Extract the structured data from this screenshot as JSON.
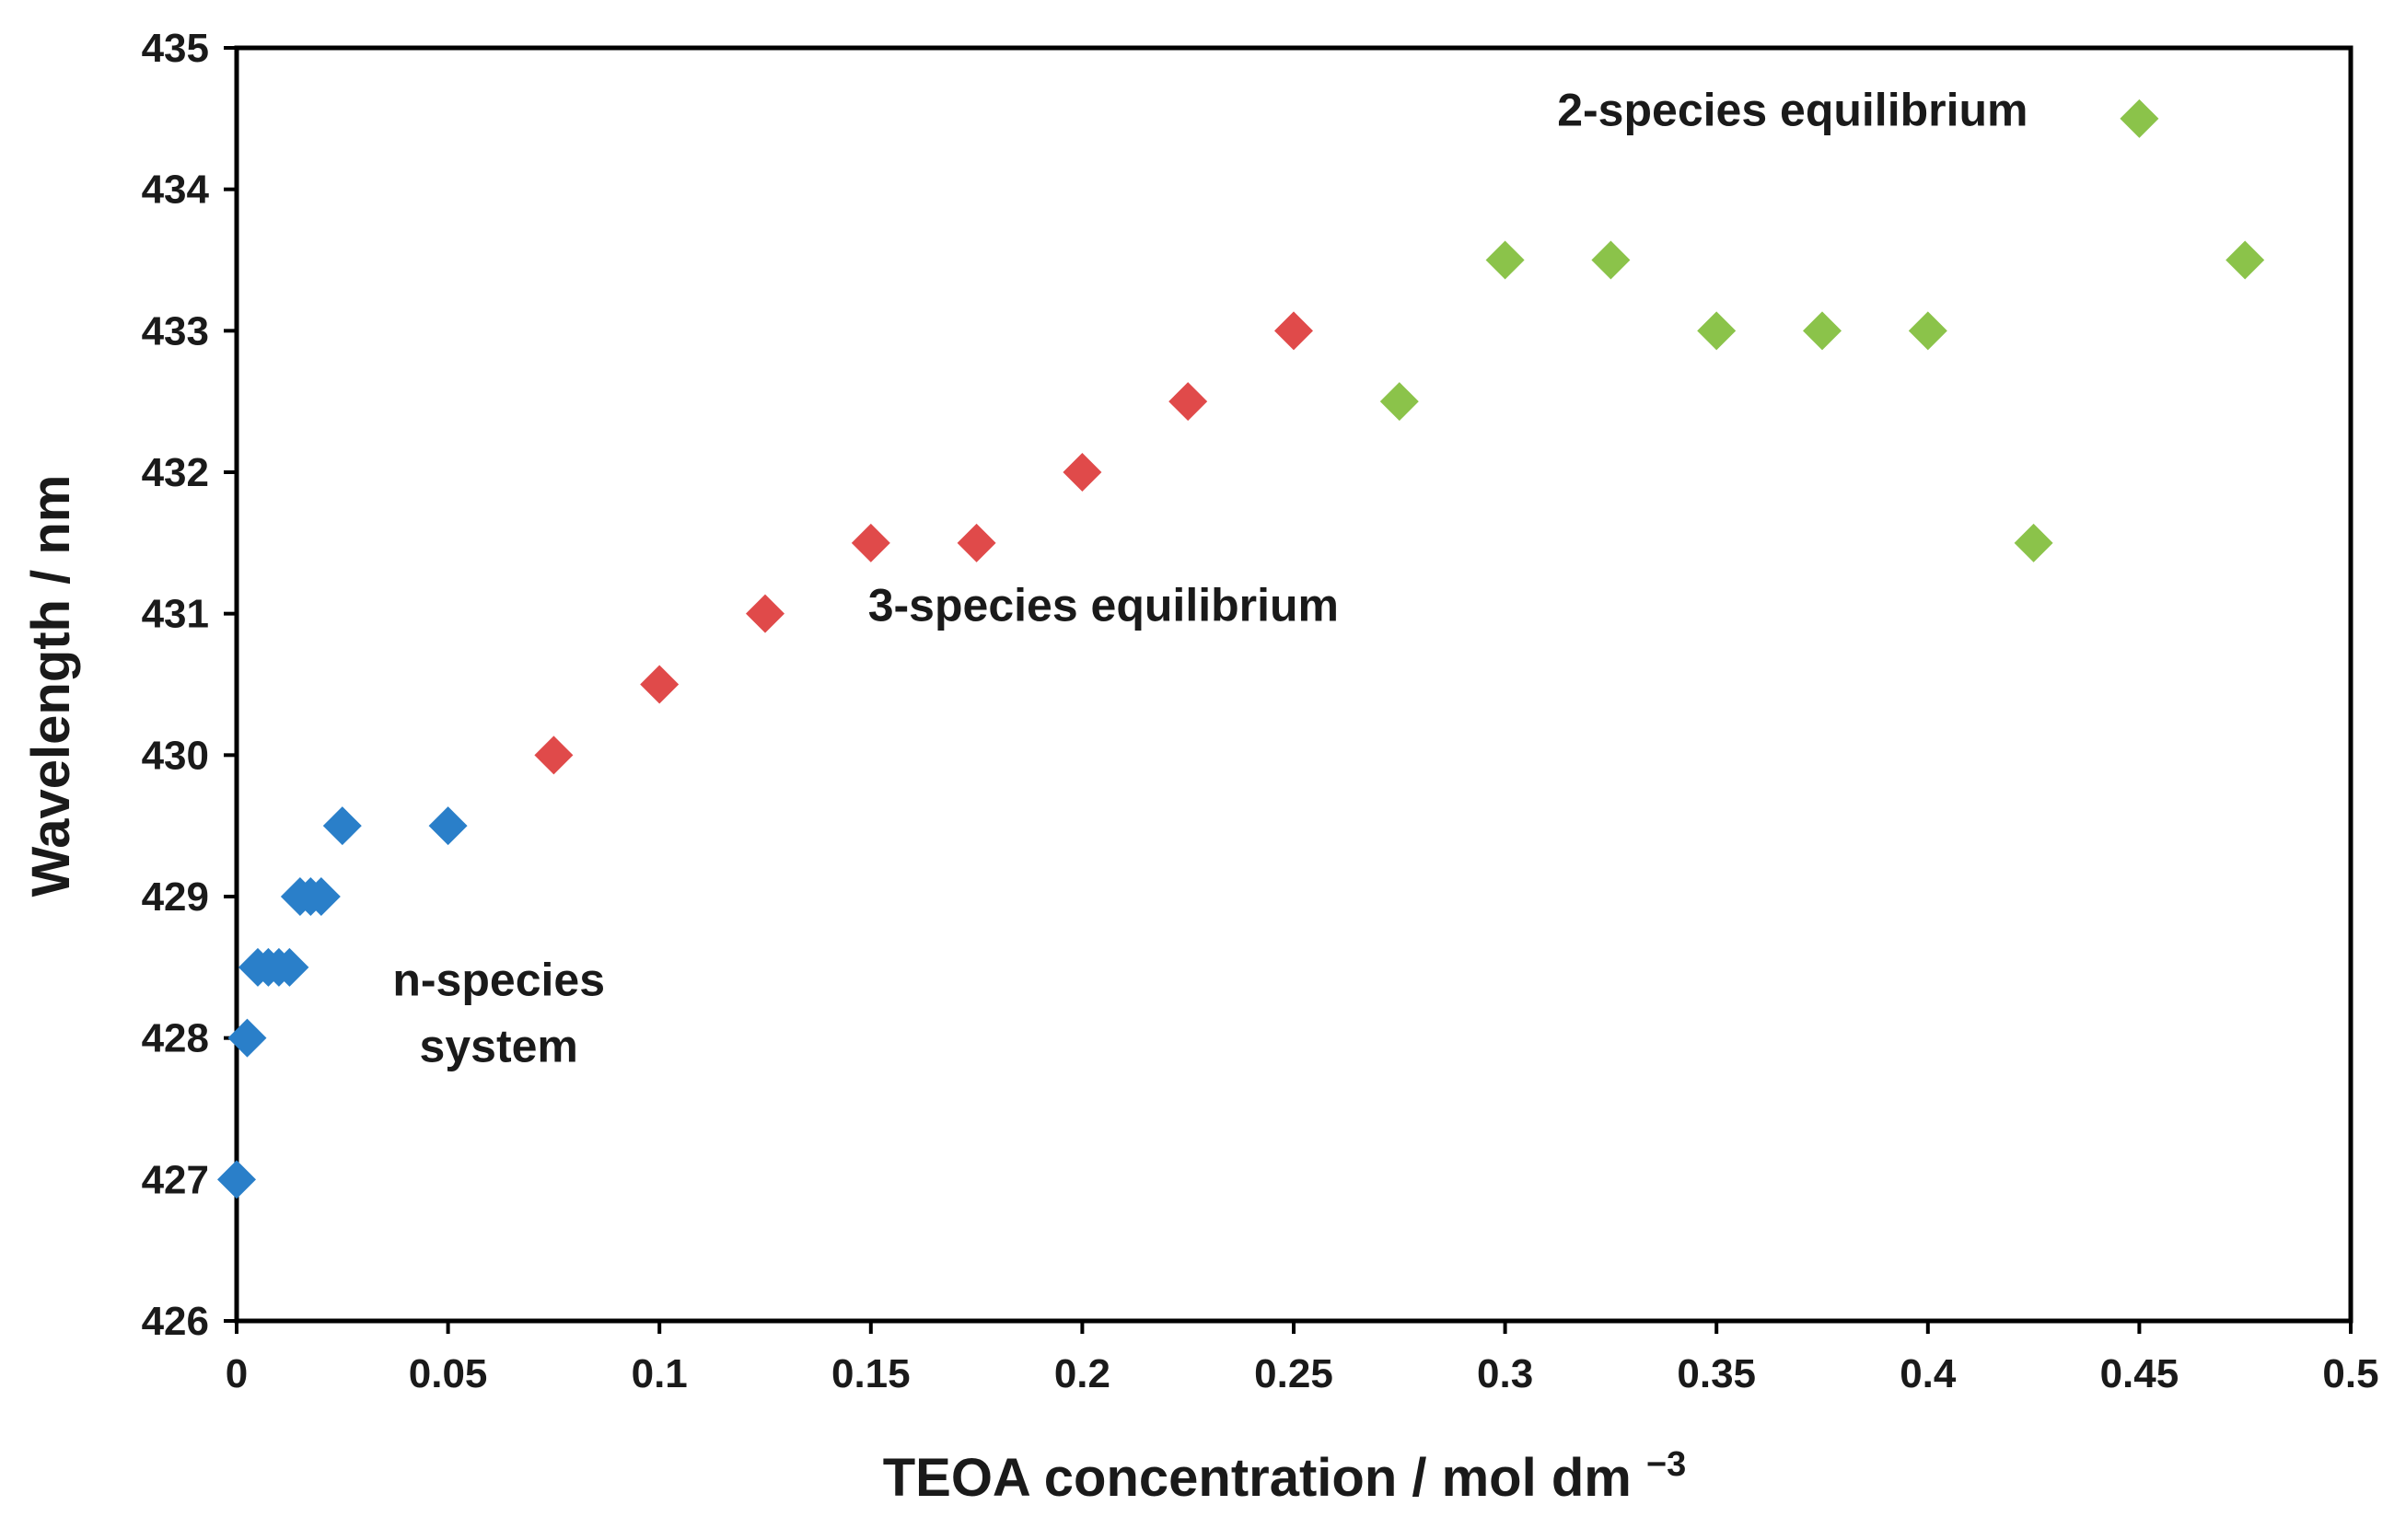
{
  "chart_data": {
    "type": "scatter",
    "title": "",
    "xlabel": "TEOA concentration / mol dm",
    "xlabel_superscript": "−3",
    "ylabel": "Wavelength / nm",
    "xlim": [
      0,
      0.5
    ],
    "ylim": [
      426,
      435
    ],
    "grid": false,
    "legend": "none",
    "x_ticks": [
      0,
      0.05,
      0.1,
      0.15,
      0.2,
      0.25,
      0.3,
      0.35,
      0.4,
      0.45,
      0.5
    ],
    "x_tick_labels": [
      "0",
      "0.05",
      "0.1",
      "0.15",
      "0.2",
      "0.25",
      "0.3",
      "0.35",
      "0.4",
      "0.45",
      "0.5"
    ],
    "y_ticks": [
      426,
      427,
      428,
      429,
      430,
      431,
      432,
      433,
      434,
      435
    ],
    "y_tick_labels": [
      "426",
      "427",
      "428",
      "429",
      "430",
      "431",
      "432",
      "433",
      "434",
      "435"
    ],
    "marker": "diamond",
    "series": [
      {
        "color": "#2a7fc9",
        "points": [
          {
            "x": 0,
            "y": 427
          },
          {
            "x": 0.0025,
            "y": 428
          },
          {
            "x": 0.005,
            "y": 428.5
          },
          {
            "x": 0.0075,
            "y": 428.5
          },
          {
            "x": 0.01,
            "y": 428.5
          },
          {
            "x": 0.0125,
            "y": 428.5
          },
          {
            "x": 0.015,
            "y": 429
          },
          {
            "x": 0.0175,
            "y": 429
          },
          {
            "x": 0.02,
            "y": 429
          },
          {
            "x": 0.025,
            "y": 429.5
          },
          {
            "x": 0.05,
            "y": 429.5
          }
        ]
      },
      {
        "color": "#e04a4a",
        "points": [
          {
            "x": 0.075,
            "y": 430
          },
          {
            "x": 0.1,
            "y": 430.5
          },
          {
            "x": 0.125,
            "y": 431
          },
          {
            "x": 0.15,
            "y": 431.5
          },
          {
            "x": 0.175,
            "y": 431.5
          },
          {
            "x": 0.2,
            "y": 432
          },
          {
            "x": 0.225,
            "y": 432.5
          },
          {
            "x": 0.25,
            "y": 433
          }
        ]
      },
      {
        "color": "#8bc34a",
        "points": [
          {
            "x": 0.275,
            "y": 432.5
          },
          {
            "x": 0.3,
            "y": 433.5
          },
          {
            "x": 0.325,
            "y": 433.5
          },
          {
            "x": 0.35,
            "y": 433
          },
          {
            "x": 0.375,
            "y": 433
          },
          {
            "x": 0.4,
            "y": 433
          },
          {
            "x": 0.425,
            "y": 431.5
          },
          {
            "x": 0.45,
            "y": 434.5
          },
          {
            "x": 0.475,
            "y": 433.5
          }
        ]
      }
    ],
    "annotations": [
      {
        "lines": [
          "n-species",
          "system"
        ],
        "x": 0.062,
        "y": 428.3
      },
      {
        "lines": [
          "3-species equilibrium"
        ],
        "x": 0.205,
        "y": 430.95
      },
      {
        "lines": [
          "2-species equilibrium"
        ],
        "x": 0.368,
        "y": 434.45
      }
    ]
  }
}
